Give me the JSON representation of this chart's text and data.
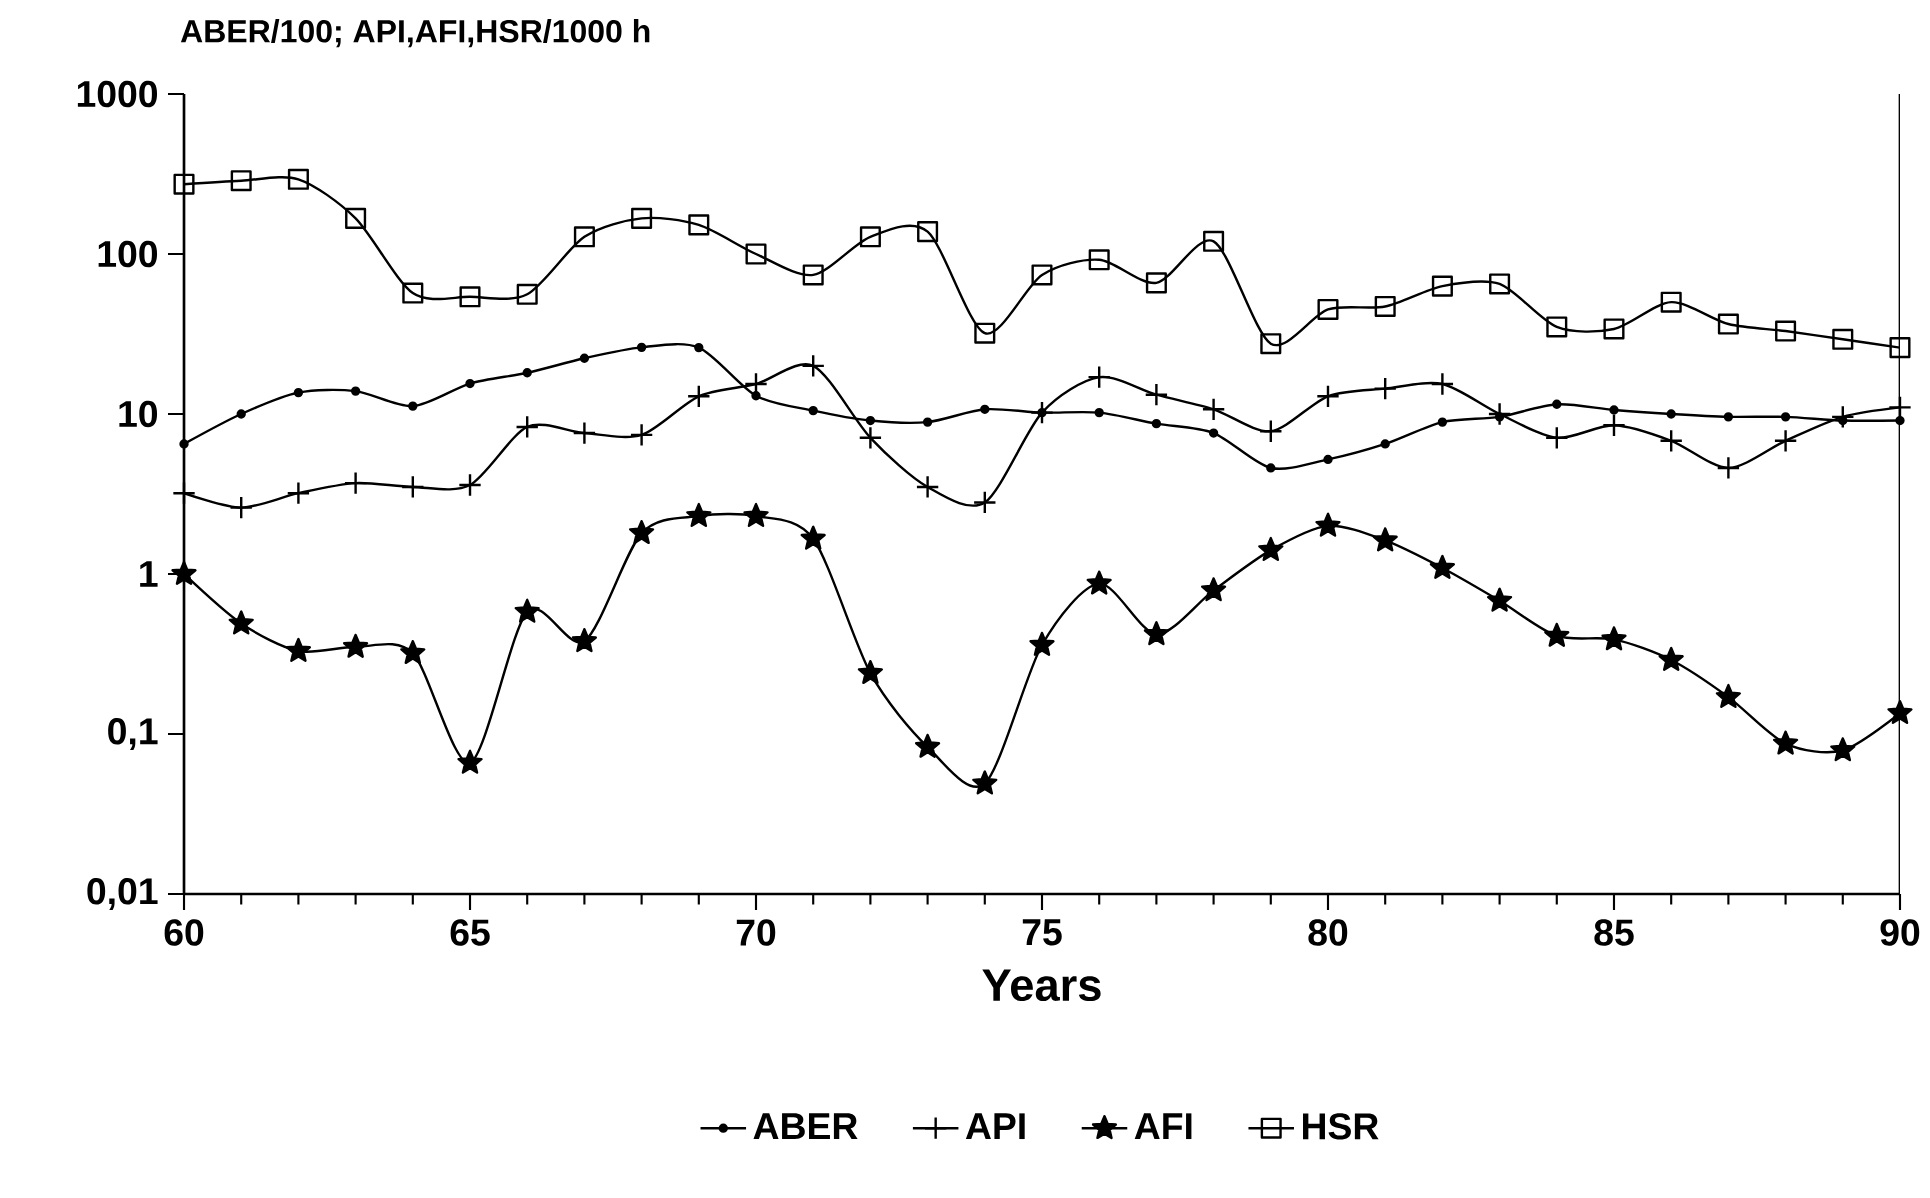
{
  "chart_data": {
    "type": "line",
    "title": "ABER/100; API,AFI,HSR/1000 h",
    "xlabel": "Years",
    "x": [
      60,
      61,
      62,
      63,
      64,
      65,
      66,
      67,
      68,
      69,
      70,
      71,
      72,
      73,
      74,
      75,
      76,
      77,
      78,
      79,
      80,
      81,
      82,
      83,
      84,
      85,
      86,
      87,
      88,
      89,
      90
    ],
    "series": [
      {
        "name": "ABER",
        "color": "#000000",
        "marker": "circle",
        "values": [
          6.5,
          10,
          13.6,
          13.9,
          11.2,
          15.5,
          18.1,
          22.3,
          26.1,
          26,
          13,
          10.5,
          9.1,
          8.9,
          10.7,
          10.2,
          10.2,
          8.7,
          7.6,
          4.6,
          5.2,
          6.5,
          8.9,
          9.6,
          11.5,
          10.6,
          10,
          9.6,
          9.6,
          9.1,
          9.1
        ]
      },
      {
        "name": "API",
        "color": "#000000",
        "marker": "cross",
        "values": [
          3.2,
          2.6,
          3.2,
          3.7,
          3.5,
          3.6,
          8.3,
          7.6,
          7.4,
          12.9,
          15.4,
          20,
          7.1,
          3.5,
          2.8,
          10.2,
          17,
          13.2,
          10.7,
          7.8,
          12.9,
          14.4,
          15.4,
          10,
          7.1,
          8.5,
          6.8,
          4.6,
          6.8,
          9.6,
          11
        ]
      },
      {
        "name": "AFI",
        "color": "#000000",
        "marker": "star",
        "values": [
          1.0,
          0.49,
          0.33,
          0.35,
          0.32,
          0.066,
          0.58,
          0.38,
          1.8,
          2.3,
          2.3,
          1.66,
          0.24,
          0.083,
          0.049,
          0.36,
          0.87,
          0.42,
          0.79,
          1.41,
          2.0,
          1.62,
          1.09,
          0.68,
          0.41,
          0.39,
          0.29,
          0.17,
          0.087,
          0.079,
          0.135
        ]
      },
      {
        "name": "HSR",
        "color": "#000000",
        "marker": "square",
        "values": [
          273,
          287,
          293,
          167,
          57,
          54,
          56,
          128,
          167,
          152,
          100,
          74,
          128,
          138,
          32,
          74,
          92,
          66,
          120,
          27.5,
          45,
          47,
          63,
          65,
          35,
          34,
          50,
          36.5,
          33,
          29.3,
          26
        ]
      }
    ],
    "xlim": [
      60,
      90
    ],
    "xticks": [
      60,
      65,
      70,
      75,
      80,
      85,
      90
    ],
    "ylim": [
      0.01,
      1000
    ],
    "yticks": [
      {
        "value": 0.01,
        "label": "0,01"
      },
      {
        "value": 0.1,
        "label": "0,1"
      },
      1,
      10,
      100,
      1000
    ],
    "log": "y",
    "grid": false,
    "legend": "bottom",
    "line_style": "solid"
  }
}
